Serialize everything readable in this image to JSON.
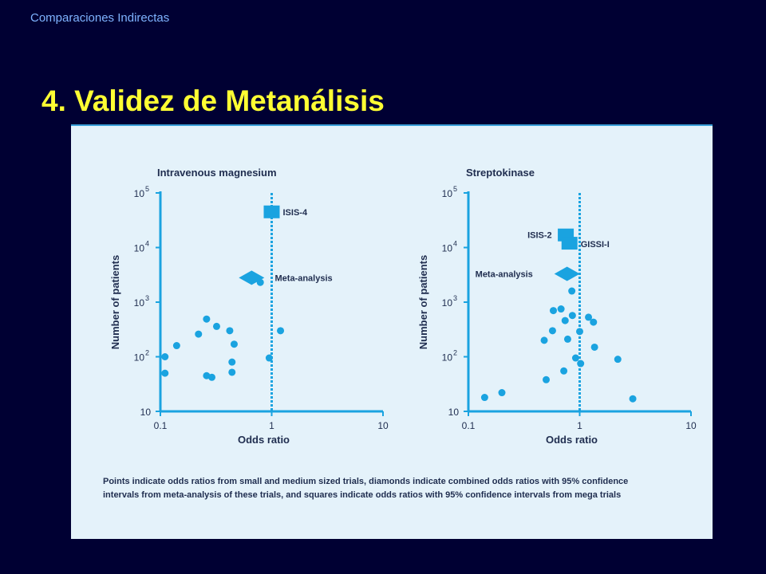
{
  "slide": {
    "header": "Comparaciones Indirectas",
    "title": "4. Validez de Metanálisis",
    "caption_line1": "Points indicate odds ratios from small and medium sized trials, diamonds indicate combined odds ratios with 95% confidence",
    "caption_line2": "intervals from meta-analysis of these trials, and squares indicate odds ratios with 95% confidence intervals from mega trials"
  },
  "colors": {
    "background": "#000033",
    "title": "#ffff33",
    "header": "#7fb3ff",
    "panel": "#e4f2fa",
    "marks": "#1aa3e0",
    "text": "#1f2d4f"
  },
  "chart_data": [
    {
      "type": "scatter",
      "title": "Intravenous magnesium",
      "xlabel": "Odds ratio",
      "ylabel": "Number of patients",
      "xscale": "log",
      "yscale": "log",
      "xlim": [
        0.1,
        10
      ],
      "ylim": [
        10,
        100000
      ],
      "xticks": [
        "0.1",
        "1",
        "10"
      ],
      "yticks": [
        {
          "base": "10",
          "exp": ""
        },
        {
          "base": "10",
          "exp": "2"
        },
        {
          "base": "10",
          "exp": "3"
        },
        {
          "base": "10",
          "exp": "4"
        },
        {
          "base": "10",
          "exp": "5"
        }
      ],
      "reference_x": 1,
      "points": [
        {
          "x": 0.11,
          "y": 50
        },
        {
          "x": 0.11,
          "y": 100
        },
        {
          "x": 0.14,
          "y": 160
        },
        {
          "x": 0.22,
          "y": 260
        },
        {
          "x": 0.26,
          "y": 490
        },
        {
          "x": 0.32,
          "y": 360
        },
        {
          "x": 0.42,
          "y": 300
        },
        {
          "x": 0.46,
          "y": 170
        },
        {
          "x": 0.26,
          "y": 45
        },
        {
          "x": 0.29,
          "y": 42
        },
        {
          "x": 0.44,
          "y": 80
        },
        {
          "x": 0.44,
          "y": 52
        },
        {
          "x": 0.79,
          "y": 2300
        },
        {
          "x": 1.2,
          "y": 300
        },
        {
          "x": 0.95,
          "y": 95
        }
      ],
      "mega_trials": [
        {
          "label": "ISIS-4",
          "x": 1.0,
          "y": 45000
        }
      ],
      "meta_analysis": {
        "label": "Meta-analysis",
        "x": 0.66,
        "y": 2800
      }
    },
    {
      "type": "scatter",
      "title": "Streptokinase",
      "xlabel": "Odds ratio",
      "ylabel": "Number of patients",
      "xscale": "log",
      "yscale": "log",
      "xlim": [
        0.1,
        10
      ],
      "ylim": [
        10,
        100000
      ],
      "xticks": [
        "0.1",
        "1",
        "10"
      ],
      "yticks": [
        {
          "base": "10",
          "exp": ""
        },
        {
          "base": "10",
          "exp": "2"
        },
        {
          "base": "10",
          "exp": "3"
        },
        {
          "base": "10",
          "exp": "4"
        },
        {
          "base": "10",
          "exp": "5"
        }
      ],
      "reference_x": 1,
      "points": [
        {
          "x": 0.14,
          "y": 18
        },
        {
          "x": 0.2,
          "y": 22
        },
        {
          "x": 0.5,
          "y": 38
        },
        {
          "x": 0.72,
          "y": 55
        },
        {
          "x": 0.48,
          "y": 200
        },
        {
          "x": 0.57,
          "y": 300
        },
        {
          "x": 0.58,
          "y": 700
        },
        {
          "x": 0.68,
          "y": 750
        },
        {
          "x": 0.74,
          "y": 460
        },
        {
          "x": 0.85,
          "y": 1600
        },
        {
          "x": 0.86,
          "y": 570
        },
        {
          "x": 0.78,
          "y": 210
        },
        {
          "x": 1.0,
          "y": 290
        },
        {
          "x": 1.2,
          "y": 530
        },
        {
          "x": 1.33,
          "y": 430
        },
        {
          "x": 1.36,
          "y": 150
        },
        {
          "x": 0.92,
          "y": 95
        },
        {
          "x": 1.02,
          "y": 75
        },
        {
          "x": 2.2,
          "y": 90
        },
        {
          "x": 3.0,
          "y": 17
        }
      ],
      "mega_trials": [
        {
          "label": "ISIS-2",
          "x": 0.75,
          "y": 17000
        },
        {
          "label": "GISSI-I",
          "x": 0.81,
          "y": 12000
        }
      ],
      "meta_analysis": {
        "label": "Meta-analysis",
        "x": 0.77,
        "y": 3300
      }
    }
  ]
}
